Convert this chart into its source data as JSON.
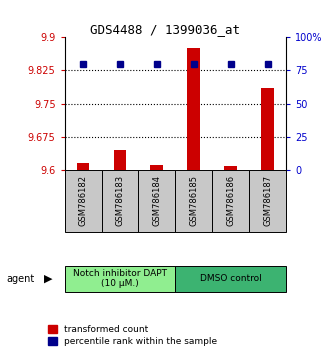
{
  "title": "GDS4488 / 1399036_at",
  "samples": [
    "GSM786182",
    "GSM786183",
    "GSM786184",
    "GSM786185",
    "GSM786186",
    "GSM786187"
  ],
  "red_values": [
    9.615,
    9.645,
    9.612,
    9.875,
    9.608,
    9.785
  ],
  "blue_values": [
    80,
    80,
    80,
    80,
    80,
    80
  ],
  "ylim_left": [
    9.6,
    9.9
  ],
  "ylim_right": [
    0,
    100
  ],
  "yticks_left": [
    9.6,
    9.675,
    9.75,
    9.825,
    9.9
  ],
  "yticks_right": [
    0,
    25,
    50,
    75,
    100
  ],
  "ytick_labels_left": [
    "9.6",
    "9.675",
    "9.75",
    "9.825",
    "9.9"
  ],
  "ytick_labels_right": [
    "0",
    "25",
    "50",
    "75",
    "100%"
  ],
  "hlines": [
    9.675,
    9.75,
    9.825
  ],
  "groups": [
    {
      "label": "Notch inhibitor DAPT\n(10 μM.)",
      "color": "#90EE90"
    },
    {
      "label": "DMSO control",
      "color": "#3CB371"
    }
  ],
  "agent_label": "agent",
  "legend_red": "transformed count",
  "legend_blue": "percentile rank within the sample",
  "bar_color": "#CC0000",
  "dot_color": "#00008B",
  "bar_width": 0.35,
  "dot_size": 5,
  "background_color": "#ffffff",
  "plot_bg": "#ffffff",
  "tick_color_left": "#CC0000",
  "tick_color_right": "#0000CC",
  "label_bg": "#C8C8C8"
}
